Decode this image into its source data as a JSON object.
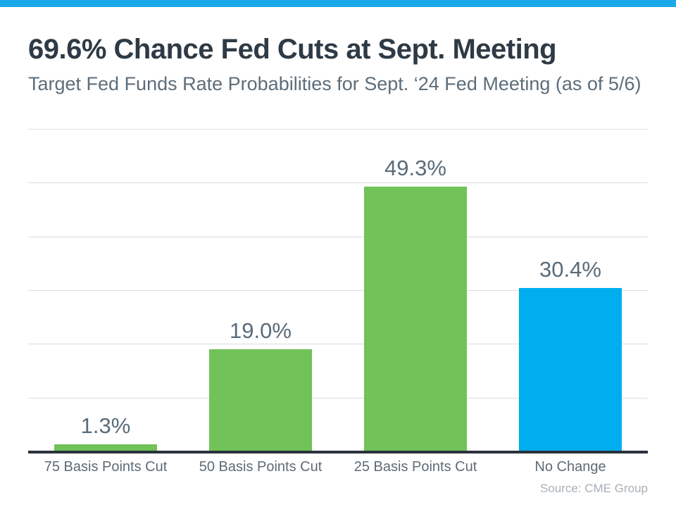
{
  "accent": {
    "top_bar_color": "#1AA9EB"
  },
  "header": {
    "title": "69.6% Chance Fed Cuts at Sept. Meeting",
    "subtitle": "Target Fed Funds Rate Probabilities for Sept. ‘24 Fed Meeting (as of 5/6)"
  },
  "chart_data": {
    "type": "bar",
    "title": "69.6% Chance Fed Cuts at Sept. Meeting",
    "subtitle": "Target Fed Funds Rate Probabilities for Sept. ‘24 Fed Meeting (as of 5/6)",
    "categories": [
      "75 Basis Points Cut",
      "50 Basis Points Cut",
      "25 Basis Points Cut",
      "No Change"
    ],
    "values": [
      1.3,
      19.0,
      49.3,
      30.4
    ],
    "value_labels": [
      "1.3%",
      "19.0%",
      "49.3%",
      "30.4%"
    ],
    "bar_colors": [
      "#71C259",
      "#71C259",
      "#71C259",
      "#00AEEF"
    ],
    "xlabel": "",
    "ylabel": "",
    "ylim": [
      0,
      60
    ],
    "gridline_step": 10,
    "grid": true,
    "legend": false,
    "grid_color": "#DEDEDE",
    "axis_line_color": "#2A333C",
    "value_label_color": "#5A6B79",
    "category_label_color": "#5D6B77"
  },
  "footer": {
    "source": "Source: CME Group"
  }
}
